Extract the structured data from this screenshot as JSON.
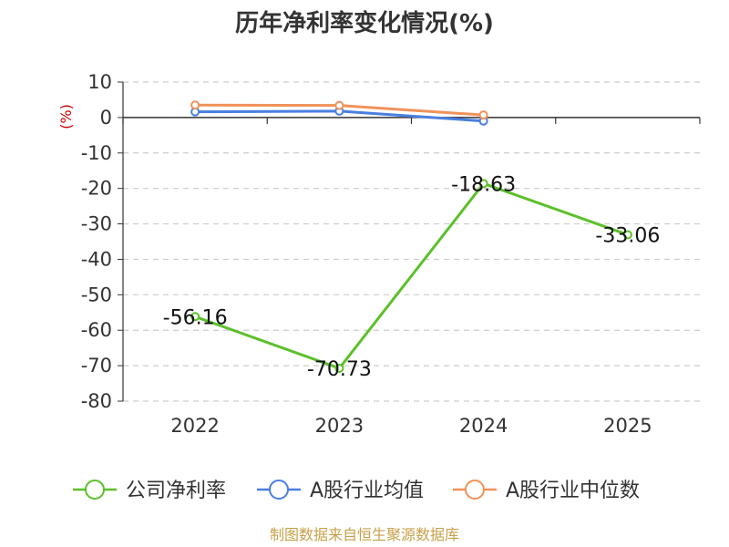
{
  "chart_data": {
    "type": "line",
    "title": "历年净利率变化情况(%)",
    "ylabel": "(%)",
    "categories": [
      "2022",
      "2023",
      "2024",
      "2025"
    ],
    "yticks": [
      "10",
      "0",
      "-10",
      "-20",
      "-30",
      "-40",
      "-50",
      "-60",
      "-70",
      "-80"
    ],
    "ylim": [
      -80,
      10
    ],
    "grid": true,
    "legend_position": "bottom",
    "series": [
      {
        "name": "公司净利率",
        "color": "#5cc02a",
        "values": [
          -56.16,
          -70.73,
          -18.63,
          -33.06
        ],
        "labels": [
          "-56.16",
          "-70.73",
          "-18.63",
          "-33.06"
        ]
      },
      {
        "name": "A股行业均值",
        "color": "#4a7fe0",
        "values": [
          1.6,
          1.8,
          -1.0,
          null
        ]
      },
      {
        "name": "A股行业中位数",
        "color": "#f0925a",
        "values": [
          3.5,
          3.4,
          0.7,
          null
        ]
      }
    ]
  },
  "source_text": "制图数据来自恒生聚源数据库"
}
